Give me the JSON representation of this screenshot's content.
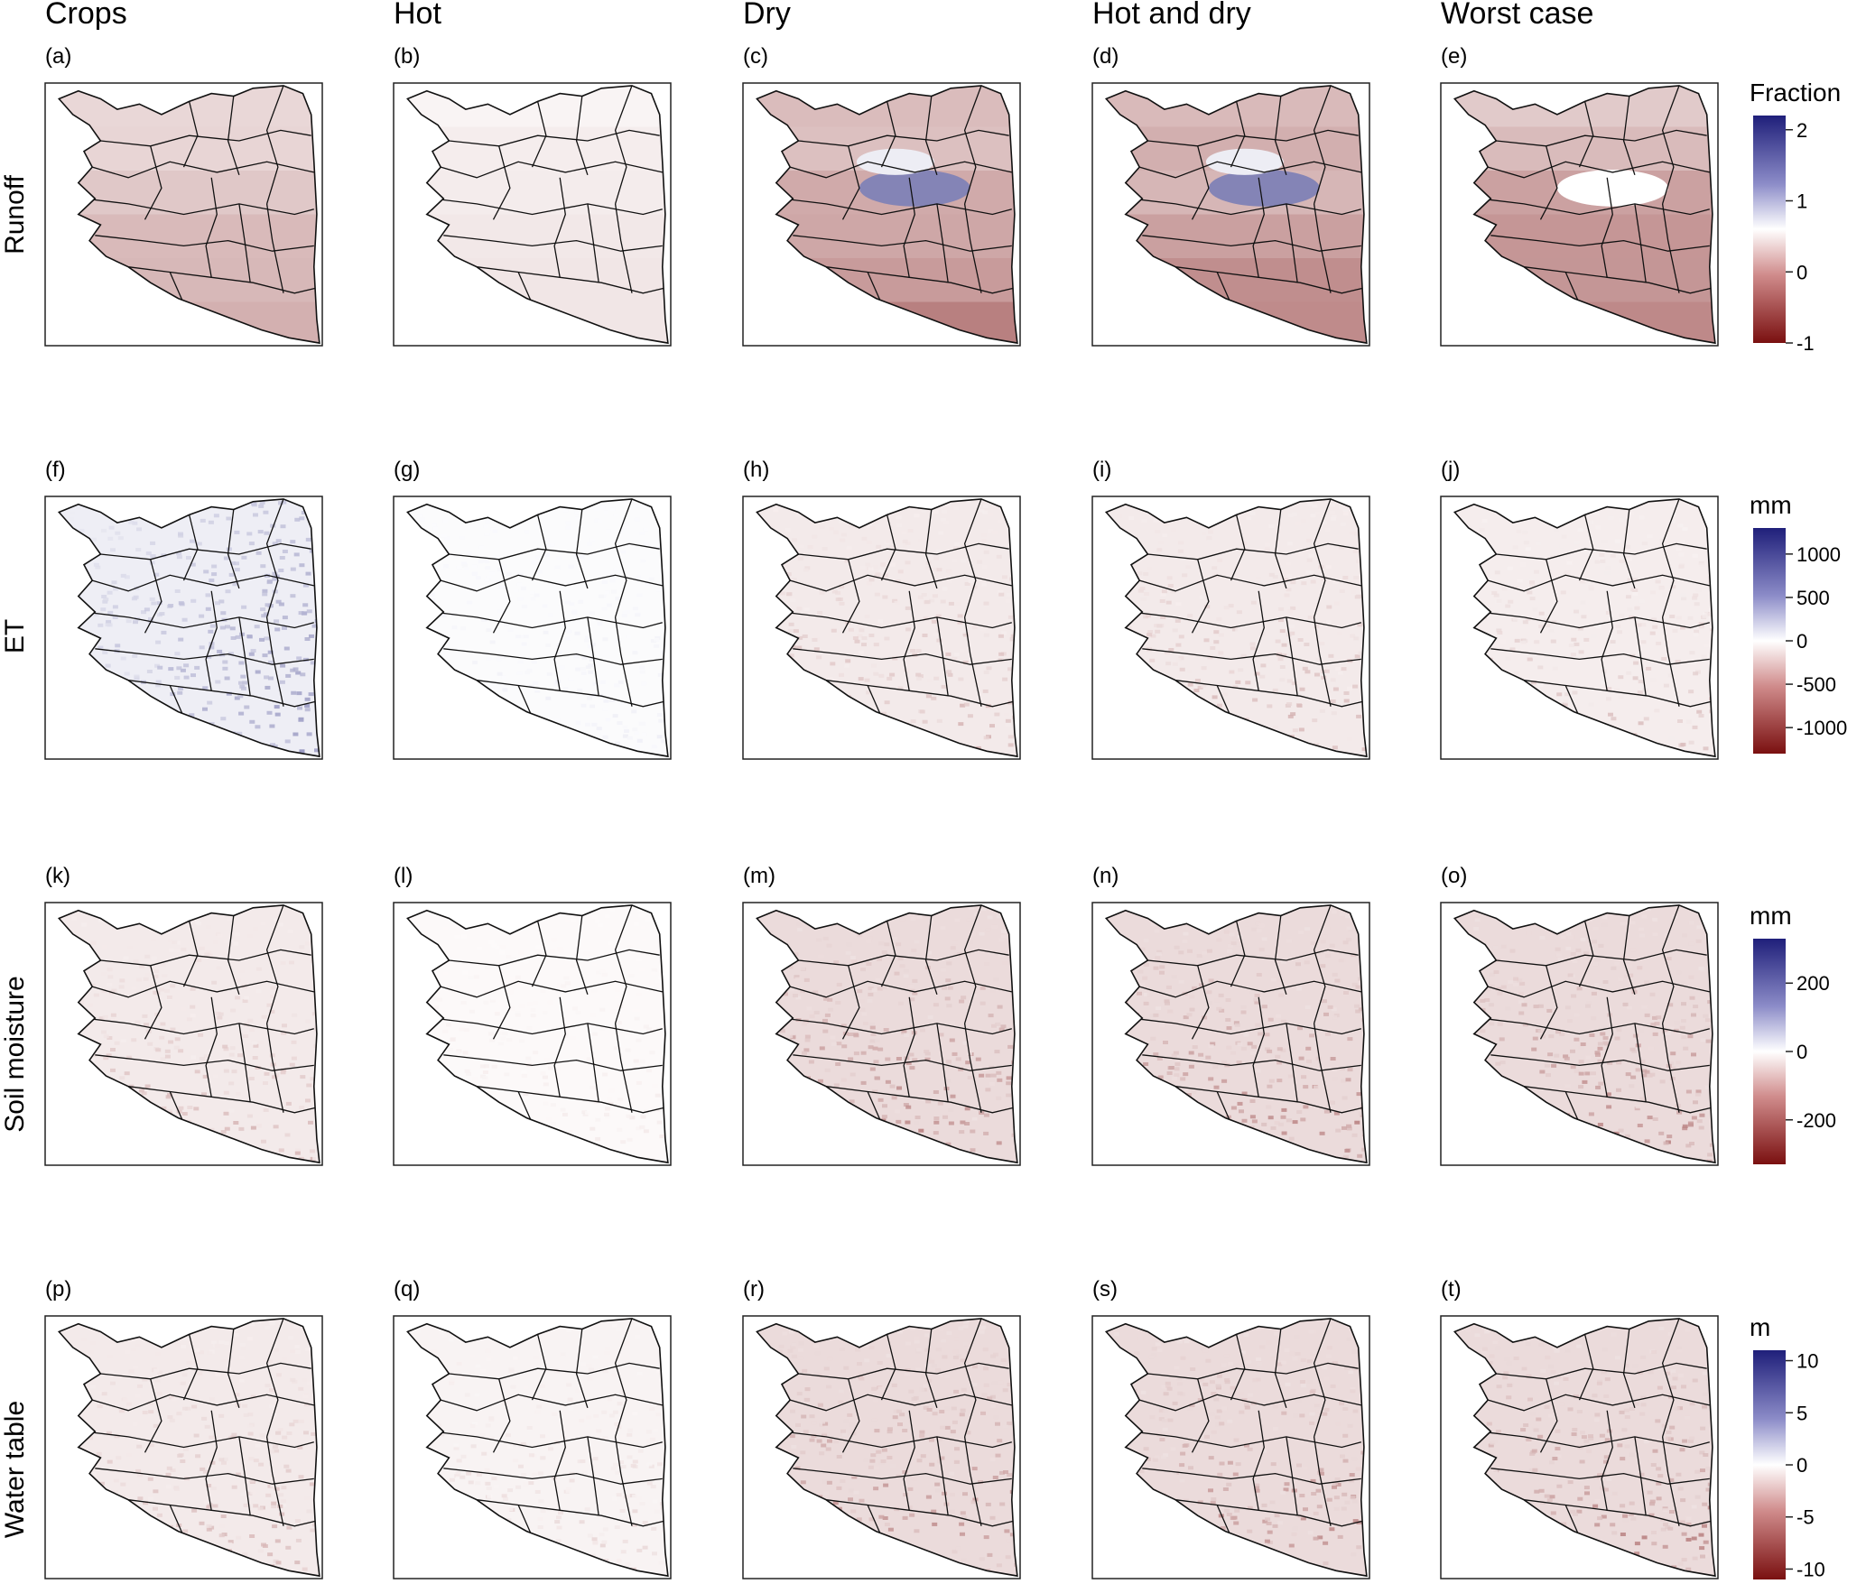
{
  "columns": [
    "Crops",
    "Hot",
    "Dry",
    "Hot and dry",
    "Worst case"
  ],
  "rows": [
    {
      "label": "Runoff",
      "tags": [
        "(a)",
        "(b)",
        "(c)",
        "(d)",
        "(e)"
      ],
      "legend": {
        "title": "Fraction",
        "ticks": [
          "2",
          "1",
          "0",
          "-1"
        ],
        "min": -1,
        "max": 2.2
      },
      "intensity": [
        -0.35,
        -0.12,
        -0.55,
        -0.55,
        -0.55
      ],
      "style": "basin"
    },
    {
      "label": "ET",
      "tags": [
        "(f)",
        "(g)",
        "(h)",
        "(i)",
        "(j)"
      ],
      "legend": {
        "title": "mm",
        "ticks": [
          "1000",
          "500",
          "0",
          "-500",
          "-1000"
        ],
        "min": -1300,
        "max": 1300
      },
      "intensity": [
        0.3,
        0.08,
        -0.35,
        -0.35,
        -0.3
      ],
      "style": "raster"
    },
    {
      "label": "Soil moisture",
      "tags": [
        "(k)",
        "(l)",
        "(m)",
        "(n)",
        "(o)"
      ],
      "legend": {
        "title": "mm",
        "ticks": [
          "200",
          "0",
          "-200"
        ],
        "min": -330,
        "max": 330
      },
      "intensity": [
        -0.35,
        -0.1,
        -0.6,
        -0.6,
        -0.6
      ],
      "style": "raster"
    },
    {
      "label": "Water table",
      "tags": [
        "(p)",
        "(q)",
        "(r)",
        "(s)",
        "(t)"
      ],
      "legend": {
        "title": "m",
        "ticks": [
          "10",
          "5",
          "0",
          "-5",
          "-10"
        ],
        "min": -11,
        "max": 11
      },
      "intensity": [
        -0.35,
        -0.2,
        -0.6,
        -0.6,
        -0.6
      ],
      "style": "raster"
    }
  ],
  "colors": {
    "positive": "#1f1f7a",
    "neutral": "#ffffff",
    "negative": "#7a1010",
    "boundary": "#111111"
  }
}
